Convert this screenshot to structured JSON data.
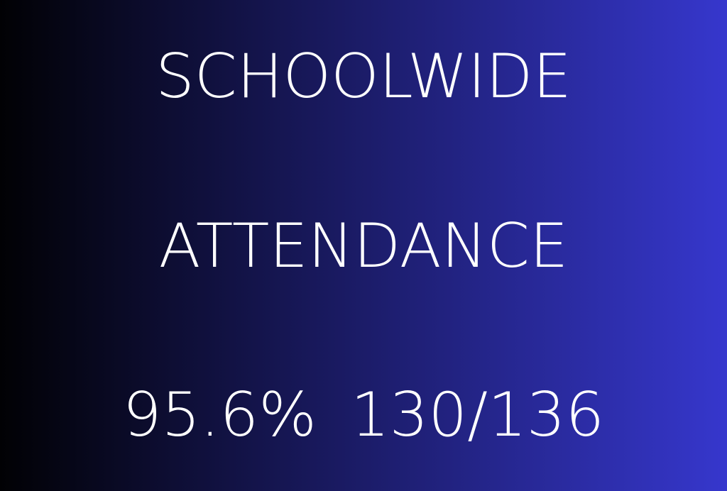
{
  "display": {
    "title_line1": "SCHOOLWIDE",
    "title_line2": "ATTENDANCE",
    "metrics": {
      "percent": "95.6%",
      "fraction": "130/136"
    },
    "colors": {
      "gradient_start": "#010104",
      "gradient_end": "#3637cd",
      "text": "#ffffff"
    }
  }
}
